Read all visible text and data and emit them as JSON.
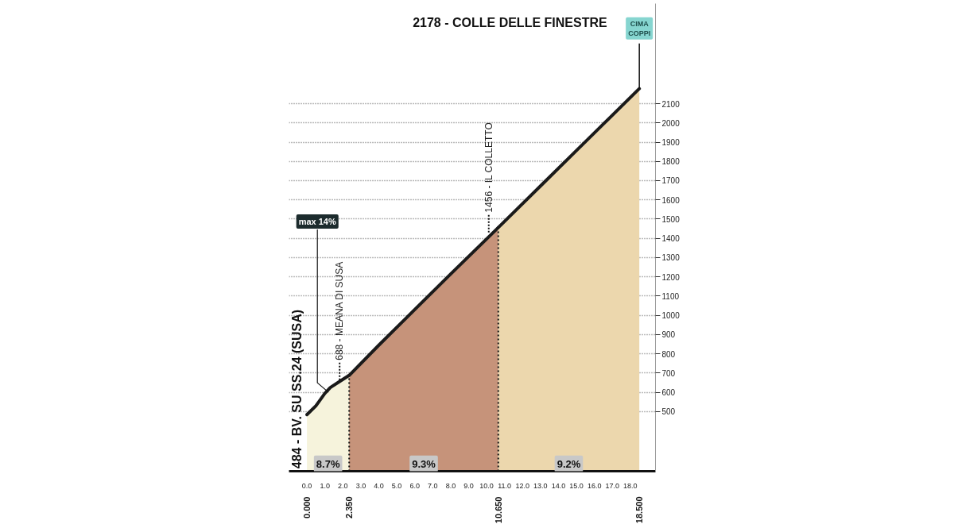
{
  "chart_data": {
    "type": "area",
    "title": "2178 - COLLE DELLE FINESTRE",
    "series": [
      {
        "color": "#f6f3dc",
        "x": [
          0,
          0.5,
          1.0,
          1.3,
          1.8,
          2.35
        ],
        "values": [
          484,
          530,
          595,
          625,
          655,
          688
        ]
      },
      {
        "color": "#c6937a",
        "x": [
          2.35,
          4,
          6,
          8,
          10.65
        ],
        "values": [
          688,
          845,
          1030,
          1215,
          1456
        ]
      },
      {
        "color": "#ecd7ad",
        "x": [
          10.65,
          13,
          15,
          17,
          18.5
        ],
        "values": [
          1456,
          1672,
          1856,
          2040,
          2178
        ]
      }
    ],
    "xlim": [
      -1.0,
      19.4
    ],
    "xticks": [
      {
        "value": 0,
        "label": "0.0"
      },
      {
        "value": 1,
        "label": "1.0"
      },
      {
        "value": 2,
        "label": "2.0"
      },
      {
        "value": 3,
        "label": "3.0"
      },
      {
        "value": 4,
        "label": "4.0"
      },
      {
        "value": 5,
        "label": "5.0"
      },
      {
        "value": 6,
        "label": "6.0"
      },
      {
        "value": 7,
        "label": "7.0"
      },
      {
        "value": 8,
        "label": "8.0"
      },
      {
        "value": 9,
        "label": "9.0"
      },
      {
        "value": 10,
        "label": "10.0"
      },
      {
        "value": 11,
        "label": "11.0"
      },
      {
        "value": 12,
        "label": "12.0"
      },
      {
        "value": 13,
        "label": "13.0"
      },
      {
        "value": 14,
        "label": "14.0"
      },
      {
        "value": 15,
        "label": "15.0"
      },
      {
        "value": 16,
        "label": "16.0"
      },
      {
        "value": 17,
        "label": "17.0"
      },
      {
        "value": 18,
        "label": "18.0"
      }
    ],
    "x2lim": [
      -1.0,
      19.4
    ],
    "x2ticks": [
      {
        "value": 0,
        "label": "0.000"
      },
      {
        "value": 2.35,
        "label": "2.350"
      },
      {
        "value": 10.65,
        "label": "10.650"
      },
      {
        "value": 18.5,
        "label": "18.500"
      }
    ],
    "ylim": [
      190,
      2620
    ],
    "yticks": [
      500,
      600,
      700,
      800,
      900,
      1000,
      1100,
      1200,
      1300,
      1400,
      1500,
      1600,
      1700,
      1800,
      1900,
      2000,
      2100
    ],
    "grid": "y",
    "ref_lines": [
      {
        "axis": "x",
        "value": 2.35,
        "line_style": "dotted",
        "color": "#111111"
      },
      {
        "axis": "x",
        "value": 10.65,
        "line_style": "dotted",
        "color": "#111111"
      }
    ],
    "annotations": [
      {
        "text": "CIMA COPPI",
        "x": 18.5,
        "y": 2178
      },
      {
        "text": "484 - BV. SU SS.24 (SUSA)",
        "x": 0,
        "y": 484
      },
      {
        "text": "688 - MEANA DI SUSA",
        "x": 2.35,
        "y": 688
      },
      {
        "text": "1456 - IL COLLETTO",
        "x": 10.65,
        "y": 1456
      },
      {
        "text": "max 14%",
        "x": 1.2,
        "y": 600
      },
      {
        "text": "8.7%",
        "x": 1.175,
        "y": 228
      },
      {
        "text": "9.3%",
        "x": 6.5,
        "y": 228
      },
      {
        "text": "9.2%",
        "x": 14.575,
        "y": 228
      }
    ]
  }
}
